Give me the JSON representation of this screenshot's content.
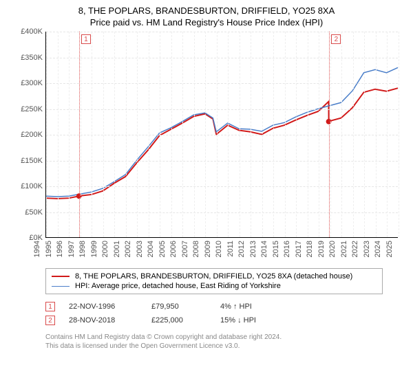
{
  "title": {
    "line1": "8, THE POPLARS, BRANDESBURTON, DRIFFIELD, YO25 8XA",
    "line2": "Price paid vs. HM Land Registry's House Price Index (HPI)"
  },
  "chart": {
    "type": "line",
    "background_color": "#ffffff",
    "grid_color": "#e5e5e5",
    "axis_color": "#000000",
    "yaxis": {
      "min": 0,
      "max": 400000,
      "step": 50000,
      "labels": [
        "£0K",
        "£50K",
        "£100K",
        "£150K",
        "£200K",
        "£250K",
        "£300K",
        "£350K",
        "£400K"
      ],
      "label_color": "#555555",
      "label_fontsize": 11
    },
    "xaxis": {
      "min": 1994,
      "max": 2025,
      "step": 1,
      "labels": [
        "1994",
        "1995",
        "1996",
        "1997",
        "1998",
        "1999",
        "2000",
        "2001",
        "2002",
        "2003",
        "2004",
        "2005",
        "2006",
        "2007",
        "2008",
        "2009",
        "2010",
        "2011",
        "2012",
        "2013",
        "2014",
        "2015",
        "2016",
        "2017",
        "2018",
        "2019",
        "2020",
        "2021",
        "2022",
        "2023",
        "2024",
        "2025"
      ],
      "label_color": "#555555",
      "label_fontsize": 11
    },
    "series": [
      {
        "name": "8, THE POPLARS, BRANDESBURTON, DRIFFIELD, YO25 8XA (detached house)",
        "color": "#d11919",
        "width": 2,
        "data": [
          [
            1994,
            76000
          ],
          [
            1995,
            75000
          ],
          [
            1996,
            76000
          ],
          [
            1996.9,
            79950
          ],
          [
            1997,
            80500
          ],
          [
            1998,
            83000
          ],
          [
            1999,
            90000
          ],
          [
            2000,
            105000
          ],
          [
            2001,
            118000
          ],
          [
            2002,
            145000
          ],
          [
            2003,
            170000
          ],
          [
            2004,
            198000
          ],
          [
            2005,
            210000
          ],
          [
            2006,
            222000
          ],
          [
            2007,
            235000
          ],
          [
            2008,
            240000
          ],
          [
            2008.7,
            230000
          ],
          [
            2009,
            200000
          ],
          [
            2010,
            218000
          ],
          [
            2011,
            208000
          ],
          [
            2012,
            205000
          ],
          [
            2013,
            200000
          ],
          [
            2014,
            212000
          ],
          [
            2015,
            218000
          ],
          [
            2016,
            228000
          ],
          [
            2017,
            237000
          ],
          [
            2018,
            245000
          ],
          [
            2018.9,
            264000
          ],
          [
            2018.91,
            225000
          ],
          [
            2019,
            226000
          ],
          [
            2020,
            232000
          ],
          [
            2021,
            252000
          ],
          [
            2022,
            282000
          ],
          [
            2023,
            288000
          ],
          [
            2024,
            284000
          ],
          [
            2025,
            290000
          ]
        ]
      },
      {
        "name": "HPI: Average price, detached house, East Riding of Yorkshire",
        "color": "#4a7ec9",
        "width": 1.5,
        "data": [
          [
            1994,
            80000
          ],
          [
            1995,
            79000
          ],
          [
            1996,
            80000
          ],
          [
            1997,
            84000
          ],
          [
            1998,
            88000
          ],
          [
            1999,
            95000
          ],
          [
            2000,
            108000
          ],
          [
            2001,
            122000
          ],
          [
            2002,
            150000
          ],
          [
            2003,
            176000
          ],
          [
            2004,
            203000
          ],
          [
            2005,
            213000
          ],
          [
            2006,
            225000
          ],
          [
            2007,
            238000
          ],
          [
            2008,
            242000
          ],
          [
            2008.7,
            232000
          ],
          [
            2009,
            205000
          ],
          [
            2010,
            222000
          ],
          [
            2011,
            211000
          ],
          [
            2012,
            210000
          ],
          [
            2013,
            206000
          ],
          [
            2014,
            218000
          ],
          [
            2015,
            223000
          ],
          [
            2016,
            234000
          ],
          [
            2017,
            243000
          ],
          [
            2018,
            250000
          ],
          [
            2019,
            256000
          ],
          [
            2020,
            262000
          ],
          [
            2021,
            285000
          ],
          [
            2022,
            320000
          ],
          [
            2023,
            326000
          ],
          [
            2024,
            320000
          ],
          [
            2025,
            330000
          ]
        ]
      }
    ],
    "events": [
      {
        "id": "1",
        "year": 1996.9,
        "badge_color": "#d94a4a",
        "marker_y": 79950
      },
      {
        "id": "2",
        "year": 2018.91,
        "badge_color": "#d94a4a",
        "marker_y": 225000
      }
    ]
  },
  "legend": {
    "border_color": "#aaaaaa",
    "fontsize": 11,
    "items": [
      {
        "color": "#d11919",
        "width": 2,
        "label": "8, THE POPLARS, BRANDESBURTON, DRIFFIELD, YO25 8XA (detached house)"
      },
      {
        "color": "#4a7ec9",
        "width": 1.5,
        "label": "HPI: Average price, detached house, East Riding of Yorkshire"
      }
    ]
  },
  "event_table": [
    {
      "id": "1",
      "date": "22-NOV-1996",
      "price": "£79,950",
      "delta": "4% ↑ HPI"
    },
    {
      "id": "2",
      "date": "28-NOV-2018",
      "price": "£225,000",
      "delta": "15% ↓ HPI"
    }
  ],
  "footer": {
    "line1": "Contains HM Land Registry data © Crown copyright and database right 2024.",
    "line2": "This data is licensed under the Open Government Licence v3.0."
  }
}
